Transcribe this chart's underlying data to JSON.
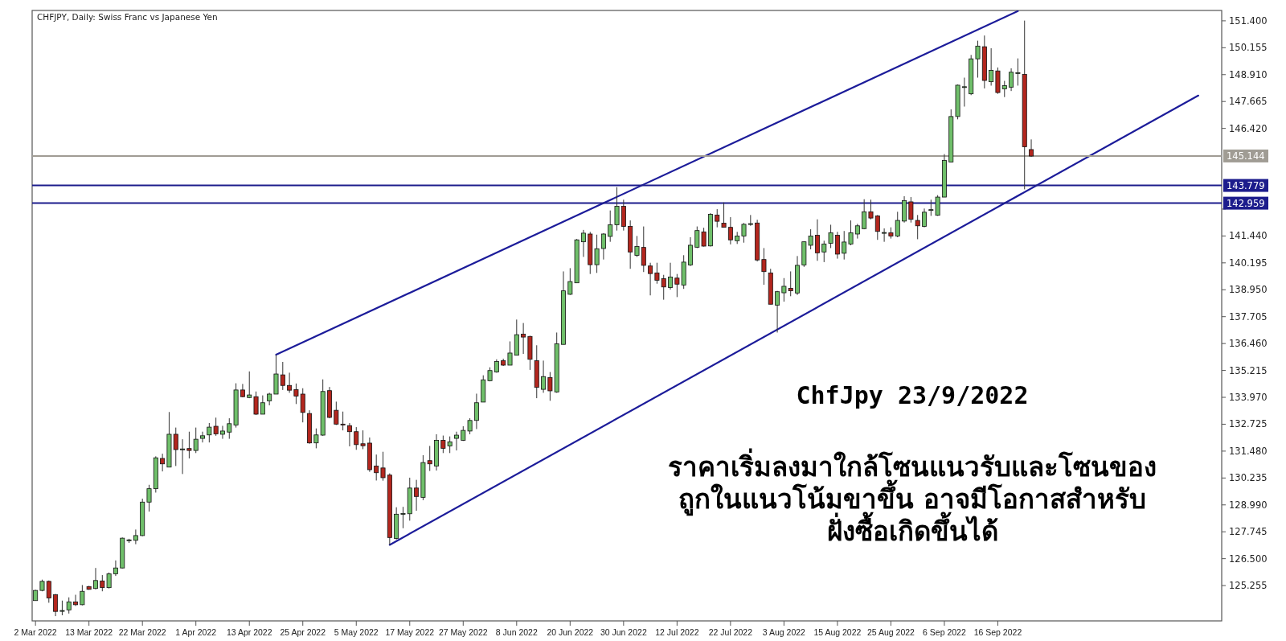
{
  "chart_data": {
    "type": "candlestick",
    "title": "CHFJPY, Daily:  Swiss Franc vs Japanese Yen",
    "categories": [
      "2 Mar 2022",
      null,
      null,
      null,
      null,
      null,
      null,
      null,
      "13 Mar 2022",
      null,
      null,
      null,
      null,
      null,
      null,
      null,
      "22 Mar 2022",
      null,
      null,
      null,
      null,
      null,
      null,
      null,
      "1 Apr 2022",
      null,
      null,
      null,
      null,
      null,
      null,
      null,
      "13 Apr 2022",
      null,
      null,
      null,
      null,
      null,
      null,
      null,
      "25 Apr 2022",
      null,
      null,
      null,
      null,
      null,
      null,
      null,
      "5 May 2022",
      null,
      null,
      null,
      null,
      null,
      null,
      null,
      "17 May 2022",
      null,
      null,
      null,
      null,
      null,
      null,
      null,
      "27 May 2022",
      null,
      null,
      null,
      null,
      null,
      null,
      null,
      "8 Jun 2022",
      null,
      null,
      null,
      null,
      null,
      null,
      null,
      "20 Jun 2022",
      null,
      null,
      null,
      null,
      null,
      null,
      null,
      "30 Jun 2022",
      null,
      null,
      null,
      null,
      null,
      null,
      null,
      "12 Jul 2022",
      null,
      null,
      null,
      null,
      null,
      null,
      null,
      "22 Jul 2022",
      null,
      null,
      null,
      null,
      null,
      null,
      null,
      "3 Aug 2022",
      null,
      null,
      null,
      null,
      null,
      null,
      null,
      "15 Aug 2022",
      null,
      null,
      null,
      null,
      null,
      null,
      null,
      "25 Aug 2022",
      null,
      null,
      null,
      null,
      null,
      null,
      null,
      "6 Sep 2022",
      null,
      null,
      null,
      null,
      null,
      null,
      null,
      "16 Sep 2022",
      null,
      null,
      null,
      null,
      null,
      null,
      null,
      null,
      null,
      null,
      null,
      null,
      null,
      null,
      null,
      null,
      null,
      null,
      null,
      null,
      null,
      null,
      null,
      null,
      null,
      null,
      null,
      null,
      null,
      null,
      null,
      null,
      null
    ],
    "ohlc": [
      [
        124.56,
        125.06,
        124.56,
        125.03
      ],
      [
        125.03,
        125.53,
        124.99,
        125.45
      ],
      [
        125.45,
        125.49,
        124.46,
        124.68
      ],
      [
        124.83,
        124.87,
        123.84,
        124.06
      ],
      [
        124.09,
        124.56,
        123.88,
        124.1
      ],
      [
        124.13,
        124.71,
        123.96,
        124.5
      ],
      [
        124.5,
        124.83,
        124.31,
        124.37
      ],
      [
        124.37,
        125.28,
        124.34,
        124.99
      ],
      [
        125.21,
        125.24,
        125.06,
        125.08
      ],
      [
        125.12,
        126.07,
        125.08,
        125.49
      ],
      [
        125.47,
        125.74,
        124.99,
        125.16
      ],
      [
        125.16,
        125.86,
        125.12,
        125.8
      ],
      [
        125.8,
        126.42,
        125.7,
        126.07
      ],
      [
        126.07,
        127.48,
        126.05,
        127.45
      ],
      [
        127.35,
        127.42,
        127.23,
        127.37
      ],
      [
        127.35,
        127.85,
        127.17,
        127.57
      ],
      [
        127.57,
        129.28,
        127.54,
        129.12
      ],
      [
        129.12,
        129.92,
        128.68,
        129.74
      ],
      [
        129.74,
        131.24,
        129.56,
        131.17
      ],
      [
        131.14,
        131.36,
        130.54,
        130.89
      ],
      [
        130.74,
        133.29,
        130.74,
        132.26
      ],
      [
        132.26,
        132.57,
        130.79,
        131.55
      ],
      [
        131.57,
        132.03,
        130.42,
        131.58
      ],
      [
        131.6,
        132.38,
        131.14,
        131.51
      ],
      [
        131.51,
        132.57,
        131.39,
        132.03
      ],
      [
        132.07,
        132.38,
        131.88,
        132.19
      ],
      [
        132.23,
        132.78,
        131.88,
        132.59
      ],
      [
        132.63,
        133.03,
        132.19,
        132.28
      ],
      [
        132.26,
        132.65,
        132.05,
        132.41
      ],
      [
        132.36,
        133.0,
        132.05,
        132.75
      ],
      [
        132.69,
        134.62,
        132.57,
        134.31
      ],
      [
        134.31,
        134.59,
        133.97,
        134.0
      ],
      [
        133.96,
        135.17,
        133.93,
        134.08
      ],
      [
        134.0,
        134.24,
        133.15,
        133.19
      ],
      [
        133.19,
        134.06,
        133.19,
        133.72
      ],
      [
        133.81,
        134.18,
        133.6,
        134.12
      ],
      [
        134.12,
        135.94,
        134.12,
        135.05
      ],
      [
        135.01,
        135.61,
        134.31,
        134.52
      ],
      [
        134.52,
        135.11,
        134.18,
        134.3
      ],
      [
        134.33,
        134.61,
        133.66,
        134.03
      ],
      [
        134.12,
        134.39,
        132.81,
        133.27
      ],
      [
        133.22,
        133.37,
        131.82,
        131.86
      ],
      [
        131.86,
        132.53,
        131.61,
        132.23
      ],
      [
        132.22,
        134.8,
        132.19,
        134.24
      ],
      [
        134.28,
        134.45,
        133.0,
        133.04
      ],
      [
        133.37,
        133.77,
        132.69,
        132.73
      ],
      [
        132.73,
        133.31,
        132.44,
        132.72
      ],
      [
        132.66,
        132.78,
        131.7,
        132.38
      ],
      [
        132.38,
        132.59,
        131.54,
        131.78
      ],
      [
        131.82,
        132.44,
        131.57,
        131.73
      ],
      [
        131.85,
        132.11,
        130.52,
        130.62
      ],
      [
        130.79,
        131.32,
        130.12,
        130.48
      ],
      [
        130.7,
        131.45,
        130.11,
        130.25
      ],
      [
        130.37,
        130.45,
        127.14,
        127.48
      ],
      [
        127.44,
        128.88,
        127.39,
        128.56
      ],
      [
        128.58,
        128.9,
        127.91,
        128.59
      ],
      [
        128.58,
        130.25,
        128.26,
        129.77
      ],
      [
        129.77,
        130.15,
        128.72,
        129.38
      ],
      [
        129.34,
        131.29,
        129.21,
        130.95
      ],
      [
        131.04,
        131.72,
        130.56,
        130.89
      ],
      [
        130.79,
        132.26,
        130.58,
        131.98
      ],
      [
        131.98,
        132.2,
        131.39,
        131.61
      ],
      [
        131.72,
        132.16,
        131.39,
        131.91
      ],
      [
        132.07,
        132.38,
        131.51,
        132.22
      ],
      [
        131.98,
        132.63,
        131.95,
        132.44
      ],
      [
        132.41,
        133.0,
        132.26,
        132.9
      ],
      [
        132.9,
        134.14,
        132.5,
        133.72
      ],
      [
        133.75,
        134.99,
        133.75,
        134.78
      ],
      [
        134.74,
        135.36,
        134.71,
        135.21
      ],
      [
        135.14,
        135.73,
        135.11,
        135.63
      ],
      [
        135.67,
        135.76,
        135.42,
        135.46
      ],
      [
        135.46,
        136.56,
        135.46,
        136.02
      ],
      [
        135.92,
        137.57,
        135.92,
        136.87
      ],
      [
        136.89,
        137.41,
        135.98,
        136.76
      ],
      [
        136.79,
        136.82,
        135.24,
        135.73
      ],
      [
        135.67,
        136.38,
        133.93,
        134.43
      ],
      [
        134.34,
        135.67,
        134.18,
        134.93
      ],
      [
        134.89,
        135.14,
        133.81,
        134.27
      ],
      [
        134.22,
        136.97,
        134.18,
        136.45
      ],
      [
        136.42,
        139.8,
        136.42,
        138.9
      ],
      [
        138.74,
        139.95,
        138.71,
        139.33
      ],
      [
        139.27,
        141.3,
        139.27,
        141.26
      ],
      [
        141.17,
        141.72,
        140.47,
        141.57
      ],
      [
        141.53,
        141.63,
        139.68,
        140.11
      ],
      [
        140.11,
        141.5,
        139.73,
        140.85
      ],
      [
        140.86,
        141.57,
        140.35,
        141.53
      ],
      [
        141.42,
        142.62,
        141.17,
        141.96
      ],
      [
        141.96,
        143.7,
        141.69,
        142.81
      ],
      [
        142.81,
        143.12,
        141.69,
        141.88
      ],
      [
        141.88,
        142.16,
        139.92,
        140.7
      ],
      [
        140.54,
        141.44,
        140.47,
        140.95
      ],
      [
        140.91,
        141.88,
        139.77,
        140.08
      ],
      [
        140.05,
        140.2,
        138.69,
        139.7
      ],
      [
        139.73,
        140.2,
        139.23,
        139.39
      ],
      [
        139.46,
        139.64,
        138.49,
        139.08
      ],
      [
        139.05,
        140.2,
        138.96,
        139.54
      ],
      [
        139.49,
        139.68,
        138.61,
        139.21
      ],
      [
        139.17,
        140.55,
        138.99,
        140.23
      ],
      [
        140.1,
        141.38,
        140.05,
        141.01
      ],
      [
        140.92,
        141.88,
        140.88,
        141.69
      ],
      [
        141.63,
        141.82,
        140.95,
        140.97
      ],
      [
        140.98,
        142.5,
        140.95,
        142.44
      ],
      [
        142.41,
        142.68,
        141.84,
        142.12
      ],
      [
        142.03,
        142.99,
        141.84,
        141.84
      ],
      [
        141.84,
        142.31,
        141.05,
        141.26
      ],
      [
        141.22,
        141.63,
        141.07,
        141.44
      ],
      [
        141.44,
        142.04,
        141.13,
        141.98
      ],
      [
        142.0,
        142.41,
        141.91,
        142.01
      ],
      [
        142.04,
        142.19,
        140.26,
        140.33
      ],
      [
        140.35,
        140.88,
        139.18,
        139.79
      ],
      [
        139.73,
        139.92,
        138.28,
        138.28
      ],
      [
        138.24,
        138.9,
        136.97,
        138.86
      ],
      [
        138.81,
        139.49,
        138.4,
        139.11
      ],
      [
        139.02,
        139.8,
        138.65,
        138.9
      ],
      [
        138.8,
        140.51,
        138.71,
        140.08
      ],
      [
        140.1,
        141.19,
        140.01,
        141.17
      ],
      [
        141.01,
        141.75,
        140.82,
        141.44
      ],
      [
        141.47,
        142.21,
        140.29,
        140.66
      ],
      [
        140.7,
        141.22,
        140.23,
        141.07
      ],
      [
        141.1,
        141.96,
        140.88,
        141.59
      ],
      [
        141.47,
        141.63,
        140.39,
        140.6
      ],
      [
        140.64,
        141.67,
        140.35,
        141.16
      ],
      [
        141.07,
        142.16,
        141.01,
        141.59
      ],
      [
        141.53,
        142.0,
        141.32,
        141.91
      ],
      [
        141.78,
        143.14,
        141.75,
        142.56
      ],
      [
        142.56,
        143.12,
        142.21,
        142.27
      ],
      [
        142.37,
        142.41,
        141.26,
        141.65
      ],
      [
        141.59,
        141.79,
        141.17,
        141.6
      ],
      [
        141.59,
        141.84,
        141.32,
        141.44
      ],
      [
        141.44,
        142.56,
        141.38,
        142.16
      ],
      [
        142.13,
        143.28,
        142.06,
        143.08
      ],
      [
        143.02,
        143.24,
        142.06,
        142.21
      ],
      [
        142.16,
        142.41,
        141.29,
        141.91
      ],
      [
        141.88,
        142.71,
        141.84,
        142.54
      ],
      [
        142.65,
        143.12,
        142.37,
        142.66
      ],
      [
        142.4,
        143.33,
        142.37,
        143.24
      ],
      [
        143.24,
        145.23,
        143.24,
        144.94
      ],
      [
        144.86,
        147.3,
        144.86,
        146.97
      ],
      [
        146.97,
        148.45,
        146.84,
        148.42
      ],
      [
        148.33,
        148.77,
        147.43,
        148.35
      ],
      [
        148.02,
        149.82,
        147.96,
        149.64
      ],
      [
        149.64,
        150.48,
        148.77,
        150.23
      ],
      [
        150.2,
        150.72,
        148.27,
        148.64
      ],
      [
        148.58,
        150.13,
        148.4,
        149.11
      ],
      [
        149.08,
        149.24,
        148.02,
        148.08
      ],
      [
        148.25,
        148.62,
        147.87,
        148.4
      ],
      [
        148.33,
        149.2,
        148.15,
        149.02
      ],
      [
        148.99,
        149.66,
        148.4,
        149.0
      ],
      [
        148.92,
        151.41,
        143.6,
        145.57
      ],
      [
        145.44,
        145.91,
        145.1,
        145.14
      ],
      null,
      null,
      null,
      null,
      null,
      null,
      null,
      null,
      null,
      null,
      null,
      null,
      null,
      null,
      null,
      null,
      null,
      null,
      null,
      null,
      null,
      null,
      null,
      null,
      null,
      null,
      null,
      null
    ],
    "series": [
      {
        "type": "line",
        "color": "#1c1c9a",
        "values": [
          null,
          null,
          null,
          null,
          null,
          null,
          null,
          null,
          null,
          null,
          null,
          null,
          null,
          null,
          null,
          null,
          null,
          null,
          null,
          null,
          null,
          null,
          null,
          null,
          null,
          null,
          null,
          null,
          null,
          null,
          null,
          null,
          null,
          null,
          null,
          null,
          135.94,
          null,
          null,
          null,
          null,
          null,
          null,
          null,
          null,
          null,
          null,
          null,
          null,
          null,
          null,
          null,
          null,
          null,
          null,
          null,
          null,
          null,
          null,
          null,
          null,
          null,
          null,
          null,
          null,
          null,
          null,
          null,
          null,
          null,
          null,
          null,
          null,
          null,
          null,
          null,
          null,
          null,
          null,
          null,
          null,
          null,
          null,
          null,
          null,
          null,
          null,
          null,
          null,
          null,
          null,
          null,
          null,
          null,
          null,
          null,
          null,
          null,
          null,
          null,
          null,
          null,
          null,
          null,
          null,
          null,
          null,
          null,
          null,
          null,
          null,
          null,
          null,
          null,
          null,
          null,
          null,
          null,
          null,
          null,
          null,
          null,
          null,
          null,
          null,
          null,
          null,
          null,
          null,
          null,
          null,
          null,
          null,
          null,
          null,
          null,
          null,
          null,
          null,
          null,
          null,
          null,
          null,
          null,
          null,
          null,
          null,
          151.85,
          null,
          null,
          null,
          null,
          null,
          null,
          null,
          null,
          null,
          null,
          null,
          null,
          null,
          null,
          null,
          null,
          null,
          null,
          null,
          null,
          null,
          null,
          null,
          null,
          null,
          null,
          null,
          null,
          null,
          null
        ]
      },
      {
        "type": "line",
        "color": "#1c1c9a",
        "values": [
          null,
          null,
          null,
          null,
          null,
          null,
          null,
          null,
          null,
          null,
          null,
          null,
          null,
          null,
          null,
          null,
          null,
          null,
          null,
          null,
          null,
          null,
          null,
          null,
          null,
          null,
          null,
          null,
          null,
          null,
          null,
          null,
          null,
          null,
          null,
          null,
          null,
          null,
          null,
          null,
          null,
          null,
          null,
          null,
          null,
          null,
          null,
          null,
          null,
          null,
          null,
          null,
          null,
          127.14,
          null,
          null,
          null,
          null,
          null,
          null,
          null,
          null,
          null,
          null,
          null,
          null,
          null,
          null,
          null,
          null,
          null,
          null,
          null,
          null,
          null,
          null,
          null,
          null,
          null,
          null,
          null,
          null,
          null,
          null,
          null,
          null,
          null,
          null,
          null,
          null,
          null,
          null,
          null,
          null,
          null,
          null,
          null,
          null,
          null,
          null,
          null,
          null,
          null,
          null,
          null,
          null,
          null,
          null,
          null,
          null,
          null,
          null,
          null,
          null,
          null,
          null,
          null,
          null,
          null,
          null,
          null,
          null,
          null,
          null,
          null,
          null,
          null,
          null,
          null,
          null,
          null,
          null,
          null,
          null,
          null,
          null,
          null,
          null,
          null,
          null,
          null,
          null,
          null,
          null,
          null,
          null,
          null,
          null,
          null,
          null,
          null,
          null,
          null,
          null,
          null,
          null,
          null,
          null,
          null,
          null,
          null,
          null,
          null,
          null,
          null,
          null,
          null,
          null,
          null,
          null,
          null,
          null,
          null,
          null,
          147.94,
          null,
          null,
          null
        ]
      }
    ],
    "ref_lines": [
      {
        "axis": "y",
        "value": 145.144,
        "label": "145.144",
        "color": "#a09c94"
      },
      {
        "axis": "y",
        "value": 143.779,
        "label": "143.779",
        "color": "#1c1c8c"
      },
      {
        "axis": "y",
        "value": 142.959,
        "label": "142.959",
        "color": "#1c1c8c"
      }
    ],
    "ylim": [
      123.62,
      151.88
    ],
    "yticks": [
      {
        "value": 151.4,
        "label": "151.400"
      },
      {
        "value": 150.155,
        "label": "150.155"
      },
      {
        "value": 148.91,
        "label": "148.910"
      },
      {
        "value": 147.665,
        "label": "147.665"
      },
      {
        "value": 146.42,
        "label": "146.420"
      },
      {
        "value": 142.685,
        "label": null
      },
      {
        "value": 141.44,
        "label": "141.440"
      },
      {
        "value": 140.195,
        "label": "140.195"
      },
      {
        "value": 138.95,
        "label": "138.950"
      },
      {
        "value": 137.705,
        "label": "137.705"
      },
      {
        "value": 136.46,
        "label": "136.460"
      },
      {
        "value": 135.215,
        "label": "135.215"
      },
      {
        "value": 133.97,
        "label": "133.970"
      },
      {
        "value": 132.725,
        "label": "132.725"
      },
      {
        "value": 131.48,
        "label": "131.480"
      },
      {
        "value": 130.235,
        "label": "130.235"
      },
      {
        "value": 128.99,
        "label": "128.990"
      },
      {
        "value": 127.745,
        "label": "127.745"
      },
      {
        "value": 126.5,
        "label": "126.500"
      },
      {
        "value": 125.255,
        "label": "125.255"
      }
    ],
    "annotations": [
      "ChfJpy 23/9/2022",
      "ราคาเริ่มลงมาใกล้โซนแนวรับและโซนของ\nถูกในแนวโน้มขาขึ้น  อาจมีโอกาสสำหรับ\nฝั่งซื้อเกิดขึ้นได้"
    ]
  }
}
